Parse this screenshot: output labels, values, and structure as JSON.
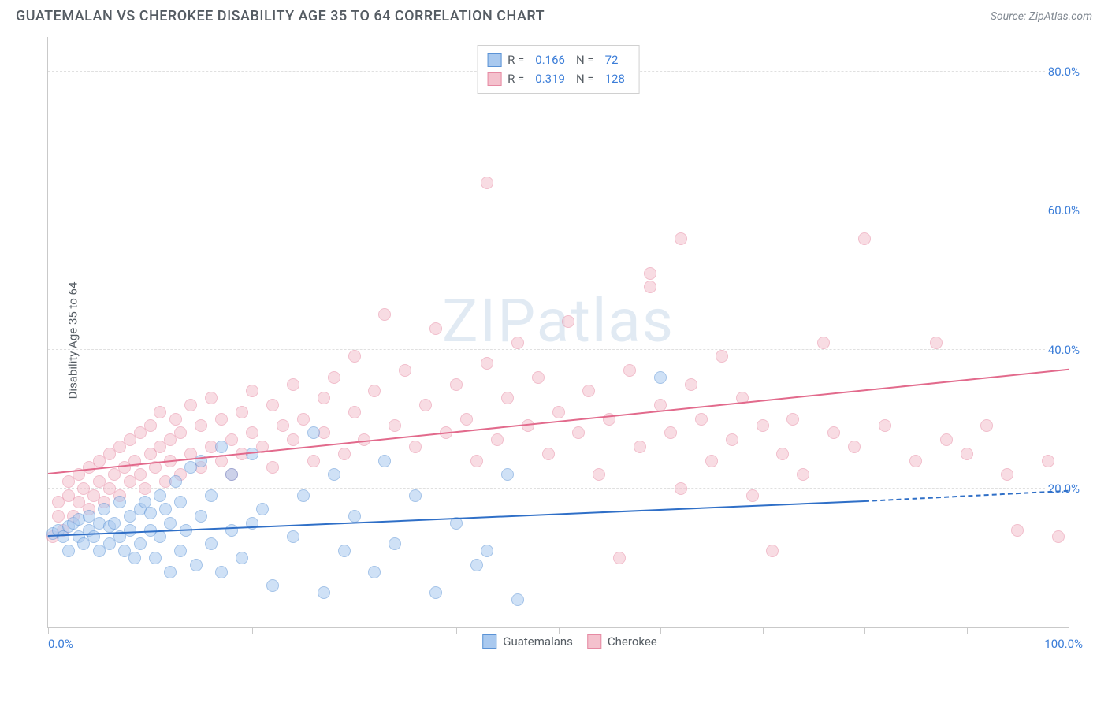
{
  "title": "GUATEMALAN VS CHEROKEE DISABILITY AGE 35 TO 64 CORRELATION CHART",
  "source": "Source: ZipAtlas.com",
  "watermark": "ZIPatlas",
  "y_axis_title": "Disability Age 35 to 64",
  "chart": {
    "type": "scatter",
    "xlim": [
      0,
      100
    ],
    "ylim": [
      0,
      85
    ],
    "x_ticks": [
      0,
      10,
      20,
      30,
      40,
      50,
      60,
      70,
      80,
      90,
      100
    ],
    "y_gridlines": [
      20,
      40,
      60,
      80
    ],
    "y_tick_labels": [
      "20.0%",
      "40.0%",
      "60.0%",
      "80.0%"
    ],
    "x_start_label": "0.0%",
    "x_end_label": "100.0%",
    "background_color": "#ffffff",
    "grid_color": "#e0e0e0",
    "axis_color": "#c9c9c9",
    "tick_label_color": "#3b7dd8",
    "marker_size": 16,
    "marker_opacity": 0.55,
    "series": [
      {
        "name": "Guatemalans",
        "fill_color": "#a9c9ef",
        "stroke_color": "#5b93d6",
        "line_color": "#2f6fc7",
        "R": "0.166",
        "N": "72",
        "trend": {
          "x1": 0,
          "y1": 13,
          "x2": 80,
          "y2": 18,
          "x2_dash": 100,
          "y2_dash": 19.5
        },
        "points": [
          [
            0.5,
            13.5
          ],
          [
            1,
            14
          ],
          [
            1.5,
            13
          ],
          [
            2,
            14.5
          ],
          [
            2,
            11
          ],
          [
            2.5,
            15
          ],
          [
            3,
            13
          ],
          [
            3,
            15.5
          ],
          [
            3.5,
            12
          ],
          [
            4,
            14
          ],
          [
            4,
            16
          ],
          [
            4.5,
            13
          ],
          [
            5,
            15
          ],
          [
            5,
            11
          ],
          [
            5.5,
            17
          ],
          [
            6,
            12
          ],
          [
            6,
            14.5
          ],
          [
            6.5,
            15
          ],
          [
            7,
            13
          ],
          [
            7,
            18
          ],
          [
            7.5,
            11
          ],
          [
            8,
            16
          ],
          [
            8,
            14
          ],
          [
            8.5,
            10
          ],
          [
            9,
            17
          ],
          [
            9,
            12
          ],
          [
            9.5,
            18
          ],
          [
            10,
            14
          ],
          [
            10,
            16.5
          ],
          [
            10.5,
            10
          ],
          [
            11,
            19
          ],
          [
            11,
            13
          ],
          [
            11.5,
            17
          ],
          [
            12,
            15
          ],
          [
            12,
            8
          ],
          [
            12.5,
            21
          ],
          [
            13,
            18
          ],
          [
            13,
            11
          ],
          [
            13.5,
            14
          ],
          [
            14,
            23
          ],
          [
            14.5,
            9
          ],
          [
            15,
            16
          ],
          [
            15,
            24
          ],
          [
            16,
            12
          ],
          [
            16,
            19
          ],
          [
            17,
            26
          ],
          [
            17,
            8
          ],
          [
            18,
            14
          ],
          [
            18,
            22
          ],
          [
            19,
            10
          ],
          [
            20,
            15
          ],
          [
            20,
            25
          ],
          [
            21,
            17
          ],
          [
            22,
            6
          ],
          [
            24,
            13
          ],
          [
            25,
            19
          ],
          [
            26,
            28
          ],
          [
            27,
            5
          ],
          [
            28,
            22
          ],
          [
            29,
            11
          ],
          [
            30,
            16
          ],
          [
            32,
            8
          ],
          [
            33,
            24
          ],
          [
            34,
            12
          ],
          [
            36,
            19
          ],
          [
            38,
            5
          ],
          [
            40,
            15
          ],
          [
            42,
            9
          ],
          [
            43,
            11
          ],
          [
            45,
            22
          ],
          [
            46,
            4
          ],
          [
            60,
            36
          ]
        ]
      },
      {
        "name": "Cherokee",
        "fill_color": "#f4c1cd",
        "stroke_color": "#e68aa3",
        "line_color": "#e26a8c",
        "R": "0.319",
        "N": "128",
        "trend": {
          "x1": 0,
          "y1": 22,
          "x2": 100,
          "y2": 37
        },
        "points": [
          [
            0.5,
            13
          ],
          [
            1,
            16
          ],
          [
            1,
            18
          ],
          [
            1.5,
            14
          ],
          [
            2,
            19
          ],
          [
            2,
            21
          ],
          [
            2.5,
            16
          ],
          [
            3,
            22
          ],
          [
            3,
            18
          ],
          [
            3.5,
            20
          ],
          [
            4,
            23
          ],
          [
            4,
            17
          ],
          [
            4.5,
            19
          ],
          [
            5,
            24
          ],
          [
            5,
            21
          ],
          [
            5.5,
            18
          ],
          [
            6,
            25
          ],
          [
            6,
            20
          ],
          [
            6.5,
            22
          ],
          [
            7,
            26
          ],
          [
            7,
            19
          ],
          [
            7.5,
            23
          ],
          [
            8,
            27
          ],
          [
            8,
            21
          ],
          [
            8.5,
            24
          ],
          [
            9,
            28
          ],
          [
            9,
            22
          ],
          [
            9.5,
            20
          ],
          [
            10,
            25
          ],
          [
            10,
            29
          ],
          [
            10.5,
            23
          ],
          [
            11,
            26
          ],
          [
            11,
            31
          ],
          [
            11.5,
            21
          ],
          [
            12,
            27
          ],
          [
            12,
            24
          ],
          [
            12.5,
            30
          ],
          [
            13,
            22
          ],
          [
            13,
            28
          ],
          [
            14,
            25
          ],
          [
            14,
            32
          ],
          [
            15,
            23
          ],
          [
            15,
            29
          ],
          [
            16,
            26
          ],
          [
            16,
            33
          ],
          [
            17,
            24
          ],
          [
            17,
            30
          ],
          [
            18,
            27
          ],
          [
            18,
            22
          ],
          [
            19,
            31
          ],
          [
            19,
            25
          ],
          [
            20,
            28
          ],
          [
            20,
            34
          ],
          [
            21,
            26
          ],
          [
            22,
            32
          ],
          [
            22,
            23
          ],
          [
            23,
            29
          ],
          [
            24,
            35
          ],
          [
            24,
            27
          ],
          [
            25,
            30
          ],
          [
            26,
            24
          ],
          [
            27,
            33
          ],
          [
            27,
            28
          ],
          [
            28,
            36
          ],
          [
            29,
            25
          ],
          [
            30,
            31
          ],
          [
            30,
            39
          ],
          [
            31,
            27
          ],
          [
            32,
            34
          ],
          [
            33,
            45
          ],
          [
            34,
            29
          ],
          [
            35,
            37
          ],
          [
            36,
            26
          ],
          [
            37,
            32
          ],
          [
            38,
            43
          ],
          [
            39,
            28
          ],
          [
            40,
            35
          ],
          [
            41,
            30
          ],
          [
            42,
            24
          ],
          [
            43,
            38
          ],
          [
            43,
            64
          ],
          [
            44,
            27
          ],
          [
            45,
            33
          ],
          [
            46,
            41
          ],
          [
            47,
            29
          ],
          [
            48,
            36
          ],
          [
            49,
            25
          ],
          [
            50,
            31
          ],
          [
            51,
            44
          ],
          [
            52,
            28
          ],
          [
            53,
            34
          ],
          [
            54,
            22
          ],
          [
            55,
            30
          ],
          [
            56,
            10
          ],
          [
            57,
            37
          ],
          [
            58,
            26
          ],
          [
            59,
            49
          ],
          [
            59,
            51
          ],
          [
            60,
            32
          ],
          [
            61,
            28
          ],
          [
            62,
            56
          ],
          [
            62,
            20
          ],
          [
            63,
            35
          ],
          [
            64,
            30
          ],
          [
            65,
            24
          ],
          [
            66,
            39
          ],
          [
            67,
            27
          ],
          [
            68,
            33
          ],
          [
            69,
            19
          ],
          [
            70,
            29
          ],
          [
            71,
            11
          ],
          [
            72,
            25
          ],
          [
            73,
            30
          ],
          [
            74,
            22
          ],
          [
            76,
            41
          ],
          [
            77,
            28
          ],
          [
            79,
            26
          ],
          [
            80,
            56
          ],
          [
            82,
            29
          ],
          [
            85,
            24
          ],
          [
            87,
            41
          ],
          [
            88,
            27
          ],
          [
            90,
            25
          ],
          [
            92,
            29
          ],
          [
            94,
            22
          ],
          [
            95,
            14
          ],
          [
            98,
            24
          ],
          [
            99,
            13
          ]
        ]
      }
    ]
  },
  "legend_top": {
    "r_label": "R =",
    "n_label": "N ="
  },
  "legend_bottom": {
    "items": [
      "Guatemalans",
      "Cherokee"
    ]
  }
}
